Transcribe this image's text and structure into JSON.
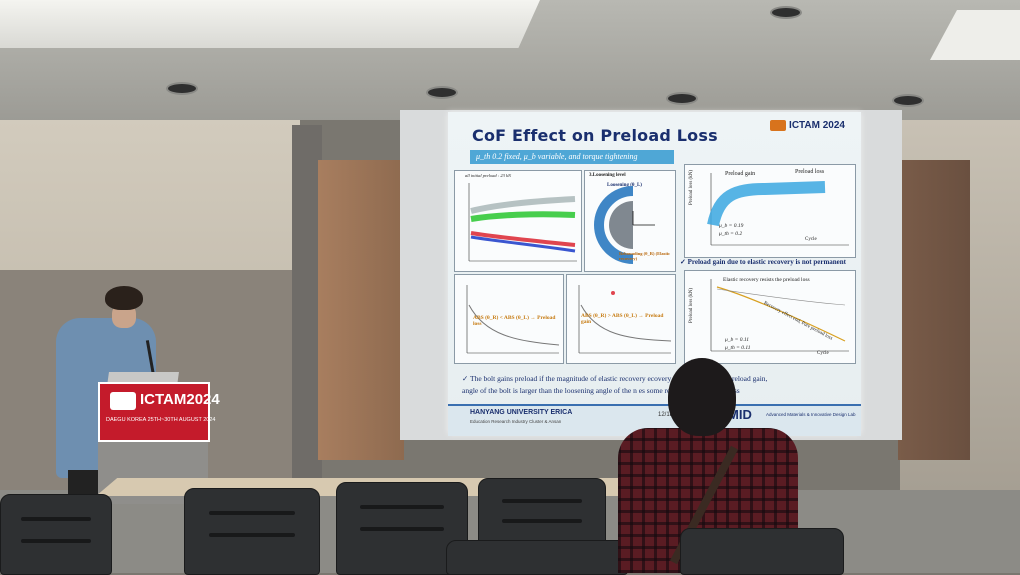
{
  "slide": {
    "title": "CoF Effect on Preload Loss",
    "subtitle": "μ_th 0.2 fixed, μ_b variable, and torque tightening",
    "logo": "ICTAM 2024",
    "top_left_legend": "all initial preload : 23 kN",
    "top_right_panel_label": "3.Loosening level",
    "loosening_label": "Loosening (θ_L)",
    "rebounding_label": "Rebounding (θ_R) (Elastic recovery)",
    "bottom_left_text": "ABS (θ_R) < ABS (θ_L) → Preload loss",
    "bottom_mid_text": "ABS (θ_R) > ABS (θ_L) → Preload gain",
    "right_top_labels": {
      "gain": "Preload gain",
      "loss": "Preload loss",
      "mu_b": "μ_b = 0.19",
      "mu_th": "μ_th = 0.2",
      "xlabel": "Cycle",
      "ylabel": "Preload loss (kN)"
    },
    "right_top_caption": "✓ Preload gain due to elastic recovery is not permanent",
    "right_bottom_labels": {
      "recovery": "Elastic recovery resists the preload loss",
      "diag": "Recovery effect end, Pure preload loss",
      "mu_b": "μ_b = 0.11",
      "mu_th": "μ_th = 0.11",
      "xlabel": "Cycle",
      "ylabel": "Preload loss (kN)"
    },
    "bullet_1": "✓ The bolt gains preload if the magnitude of elastic recovery       ecovery not always makes preload gain,",
    "bullet_2": "angle of the bolt is larger than the loosening angle of the n           es some resistance to preload loss",
    "footer_univ": "HANYANG UNIVERSITY ERICA",
    "footer_lab": "Education Research Industry Cluster & Ansan",
    "footer_page": "12/18",
    "footer_brand": "MID",
    "footer_brand_lab": "Advanced Materials & Innovative Design Lab"
  },
  "podium": {
    "title": "ICTAM2024",
    "subtitle": "DAEGU KOREA  25TH~30TH AUGUST 2024"
  },
  "colors": {
    "slide_title": "#1a2f6e",
    "subtitle_bar": "#4fa7d6",
    "podium_red": "#c41b2b",
    "series_green": "#33c93a",
    "series_red": "#e0454f",
    "series_blue": "#3aa7e0",
    "series_orange": "#d8a020"
  }
}
